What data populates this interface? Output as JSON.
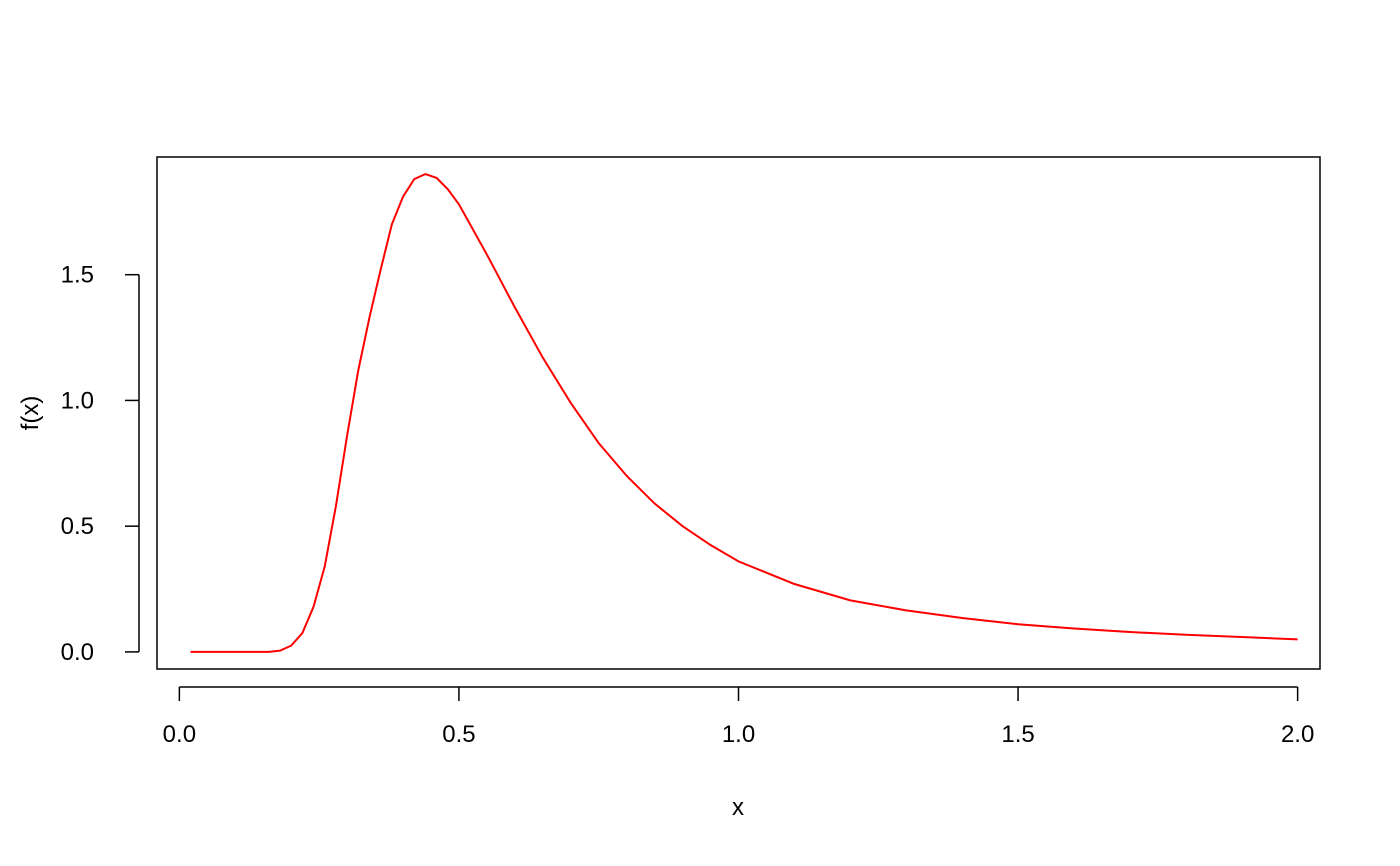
{
  "chart_data": {
    "type": "line",
    "title": "",
    "xlabel": "x",
    "ylabel": "f(x)",
    "xlim": [
      -0.04,
      2.04
    ],
    "ylim": [
      -0.068,
      1.968
    ],
    "x_ticks": [
      "0.0",
      "0.5",
      "1.0",
      "1.5",
      "2.0"
    ],
    "y_ticks": [
      "0.0",
      "0.5",
      "1.0",
      "1.5"
    ],
    "grid": false,
    "line_color": "#ff0000",
    "series": [
      {
        "x": [
          0.02,
          0.1,
          0.16,
          0.18,
          0.2,
          0.22,
          0.24,
          0.26,
          0.28,
          0.3,
          0.32,
          0.34,
          0.36,
          0.38,
          0.4,
          0.42,
          0.44,
          0.46,
          0.48,
          0.5,
          0.55,
          0.6,
          0.65,
          0.7,
          0.75,
          0.8,
          0.85,
          0.9,
          0.95,
          1.0,
          1.1,
          1.2,
          1.3,
          1.4,
          1.5,
          1.6,
          1.7,
          1.8,
          1.9,
          2.0
        ],
        "values": [
          0.0,
          0.0,
          0.0,
          0.005,
          0.025,
          0.075,
          0.18,
          0.34,
          0.58,
          0.86,
          1.12,
          1.33,
          1.52,
          1.7,
          1.81,
          1.88,
          1.9,
          1.885,
          1.84,
          1.78,
          1.58,
          1.37,
          1.17,
          0.99,
          0.83,
          0.7,
          0.59,
          0.5,
          0.425,
          0.36,
          0.27,
          0.205,
          0.165,
          0.135,
          0.11,
          0.093,
          0.079,
          0.068,
          0.059,
          0.05
        ]
      }
    ]
  }
}
